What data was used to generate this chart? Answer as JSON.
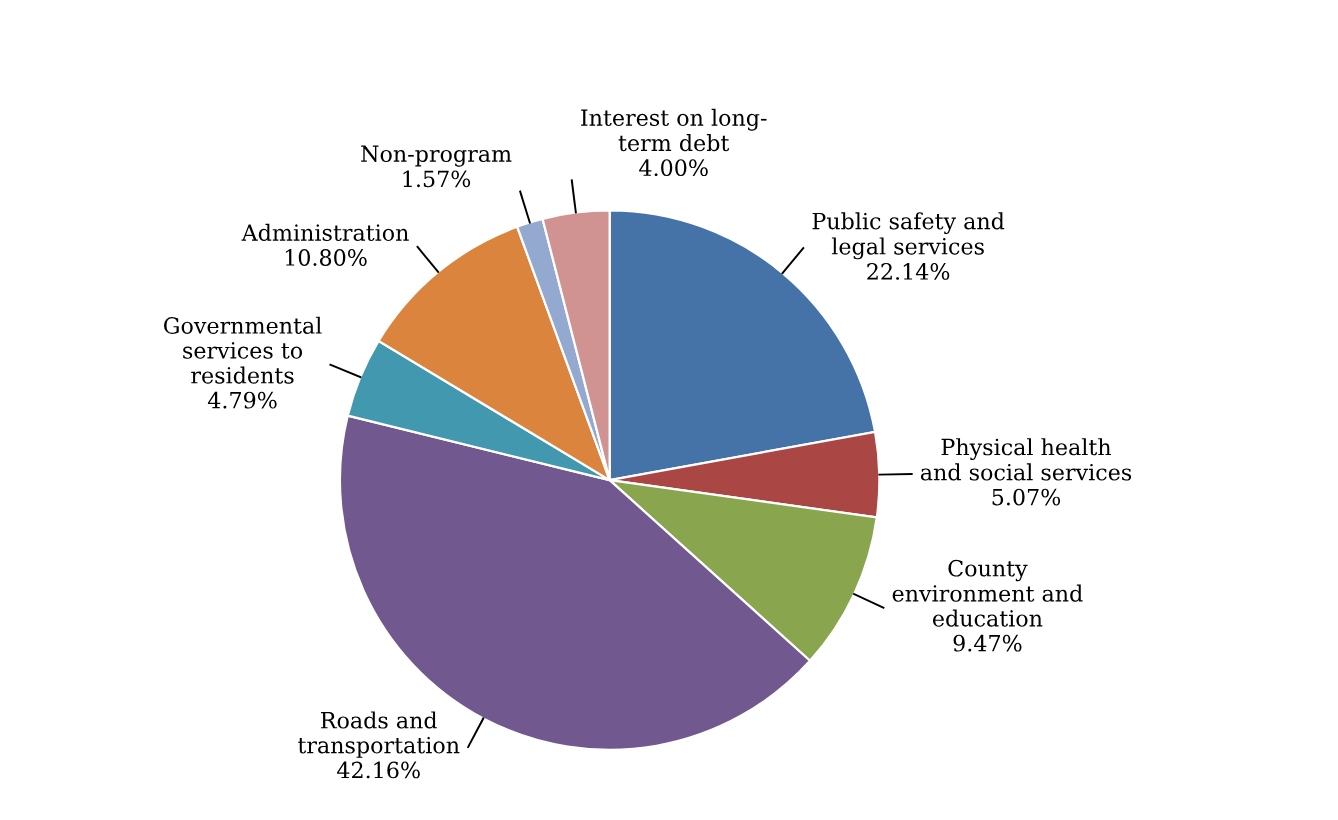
{
  "chart_data": {
    "type": "pie",
    "categories": [
      "Public safety and\nlegal services",
      "Physical health\nand social services",
      "County\nenvironment and\neducation",
      "Roads and\ntransportation",
      "Governmental\nservices to\nresidents",
      "Administration",
      "Non-program",
      "Interest on long-\nterm debt"
    ],
    "values": [
      22.14,
      5.07,
      9.47,
      42.16,
      4.79,
      10.8,
      1.57,
      4.0
    ],
    "value_labels": [
      "22.14%",
      "5.07%",
      "9.47%",
      "42.16%",
      "4.79%",
      "10.80%",
      "1.57%",
      "4.00%"
    ],
    "colors": [
      "#4572a7",
      "#aa4643",
      "#89a54e",
      "#71588f",
      "#4198af",
      "#db843d",
      "#93a9cf",
      "#d19392"
    ]
  }
}
